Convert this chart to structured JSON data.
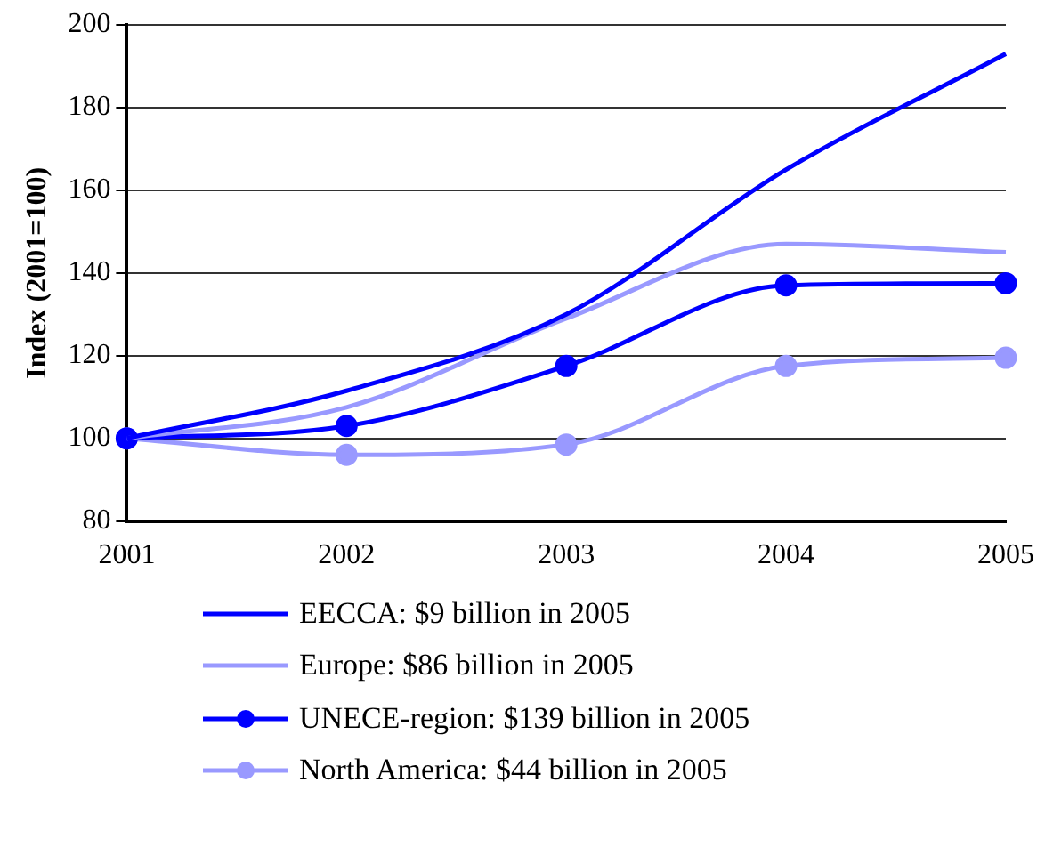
{
  "chart_data": {
    "type": "line",
    "ylabel": "Index (2001=100)",
    "categories": [
      "2001",
      "2002",
      "2003",
      "2004",
      "2005"
    ],
    "ylim": [
      80,
      200
    ],
    "yticks": [
      80,
      100,
      120,
      140,
      160,
      180,
      200
    ],
    "grid": "y",
    "legend": "bottom",
    "series": [
      {
        "name": "EECCA: $9 billion in 2005",
        "color": "#0000ff",
        "marker": "none",
        "values": [
          100,
          111.5,
          130,
          165,
          193
        ]
      },
      {
        "name": "Europe: $86 billion in 2005",
        "color": "#9999ff",
        "marker": "none",
        "values": [
          100,
          107.5,
          129,
          147,
          145
        ]
      },
      {
        "name": "UNECE-region: $139 billion in 2005",
        "color": "#0000ff",
        "marker": "circle",
        "values": [
          100,
          103,
          117.5,
          137,
          137.5
        ]
      },
      {
        "name": "North America: $44 billion in 2005",
        "color": "#9999ff",
        "marker": "circle",
        "values": [
          100,
          96,
          98.5,
          117.5,
          119.5
        ]
      }
    ]
  }
}
